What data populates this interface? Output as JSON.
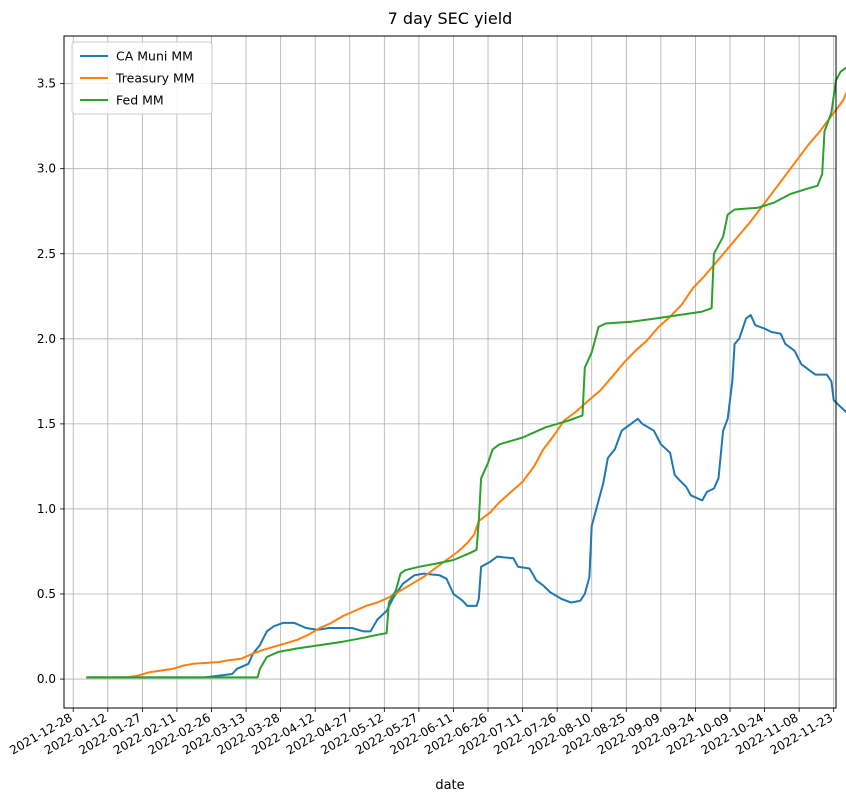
{
  "chart_data": {
    "type": "line",
    "title": "7 day SEC yield",
    "xlabel": "date",
    "ylabel": "",
    "grid": true,
    "legend_position": "top-left",
    "x_ticks": [
      "2021-12-28",
      "2022-01-12",
      "2022-01-27",
      "2022-02-11",
      "2022-02-26",
      "2022-03-13",
      "2022-03-28",
      "2022-04-12",
      "2022-04-27",
      "2022-05-12",
      "2022-05-27",
      "2022-06-11",
      "2022-06-26",
      "2022-07-11",
      "2022-07-26",
      "2022-08-10",
      "2022-08-25",
      "2022-09-09",
      "2022-09-24",
      "2022-10-09",
      "2022-10-24",
      "2022-11-08",
      "2022-11-23"
    ],
    "y_ticks": [
      0.0,
      0.5,
      1.0,
      1.5,
      2.0,
      2.5,
      3.0,
      3.5
    ],
    "y_tick_labels": [
      "0.0",
      "0.5",
      "1.0",
      "1.5",
      "2.0",
      "2.5",
      "3.0",
      "3.5"
    ],
    "xlim": [
      "2021-12-24",
      "2022-11-24"
    ],
    "ylim": [
      -0.17,
      3.78
    ],
    "series": [
      {
        "name": "CA Muni MM",
        "color": "#1f77b4",
        "points": [
          [
            "2022-01-03",
            0.01
          ],
          [
            "2022-02-23",
            0.01
          ],
          [
            "2022-03-01",
            0.02
          ],
          [
            "2022-03-07",
            0.03
          ],
          [
            "2022-03-09",
            0.06
          ],
          [
            "2022-03-14",
            0.09
          ],
          [
            "2022-03-16",
            0.15
          ],
          [
            "2022-03-19",
            0.2
          ],
          [
            "2022-03-22",
            0.28
          ],
          [
            "2022-03-25",
            0.31
          ],
          [
            "2022-03-29",
            0.33
          ],
          [
            "2022-04-03",
            0.33
          ],
          [
            "2022-04-08",
            0.3
          ],
          [
            "2022-04-13",
            0.29
          ],
          [
            "2022-04-18",
            0.3
          ],
          [
            "2022-04-28",
            0.3
          ],
          [
            "2022-05-03",
            0.28
          ],
          [
            "2022-05-06",
            0.28
          ],
          [
            "2022-05-09",
            0.35
          ],
          [
            "2022-05-13",
            0.4
          ],
          [
            "2022-05-16",
            0.48
          ],
          [
            "2022-05-20",
            0.56
          ],
          [
            "2022-05-25",
            0.61
          ],
          [
            "2022-05-29",
            0.62
          ],
          [
            "2022-06-05",
            0.61
          ],
          [
            "2022-06-08",
            0.59
          ],
          [
            "2022-06-11",
            0.5
          ],
          [
            "2022-06-15",
            0.46
          ],
          [
            "2022-06-17",
            0.43
          ],
          [
            "2022-06-21",
            0.43
          ],
          [
            "2022-06-22",
            0.47
          ],
          [
            "2022-06-23",
            0.66
          ],
          [
            "2022-06-27",
            0.69
          ],
          [
            "2022-06-30",
            0.72
          ],
          [
            "2022-07-07",
            0.71
          ],
          [
            "2022-07-09",
            0.66
          ],
          [
            "2022-07-14",
            0.65
          ],
          [
            "2022-07-17",
            0.58
          ],
          [
            "2022-07-20",
            0.55
          ],
          [
            "2022-07-23",
            0.51
          ],
          [
            "2022-07-28",
            0.47
          ],
          [
            "2022-08-01",
            0.45
          ],
          [
            "2022-08-05",
            0.46
          ],
          [
            "2022-08-07",
            0.5
          ],
          [
            "2022-08-09",
            0.6
          ],
          [
            "2022-08-10",
            0.9
          ],
          [
            "2022-08-12",
            1.0
          ],
          [
            "2022-08-15",
            1.15
          ],
          [
            "2022-08-17",
            1.3
          ],
          [
            "2022-08-20",
            1.35
          ],
          [
            "2022-08-23",
            1.46
          ],
          [
            "2022-08-27",
            1.5
          ],
          [
            "2022-08-30",
            1.53
          ],
          [
            "2022-09-01",
            1.5
          ],
          [
            "2022-09-06",
            1.46
          ],
          [
            "2022-09-09",
            1.38
          ],
          [
            "2022-09-13",
            1.33
          ],
          [
            "2022-09-15",
            1.2
          ],
          [
            "2022-09-17",
            1.17
          ],
          [
            "2022-09-20",
            1.13
          ],
          [
            "2022-09-22",
            1.08
          ],
          [
            "2022-09-27",
            1.05
          ],
          [
            "2022-09-29",
            1.1
          ],
          [
            "2022-10-02",
            1.12
          ],
          [
            "2022-10-04",
            1.18
          ],
          [
            "2022-10-06",
            1.46
          ],
          [
            "2022-10-08",
            1.53
          ],
          [
            "2022-10-10",
            1.75
          ],
          [
            "2022-10-11",
            1.97
          ],
          [
            "2022-10-13",
            2.0
          ],
          [
            "2022-10-16",
            2.12
          ],
          [
            "2022-10-18",
            2.14
          ],
          [
            "2022-10-20",
            2.08
          ],
          [
            "2022-10-24",
            2.06
          ],
          [
            "2022-10-27",
            2.04
          ],
          [
            "2022-10-31",
            2.03
          ],
          [
            "2022-11-02",
            1.97
          ],
          [
            "2022-11-06",
            1.93
          ],
          [
            "2022-11-09",
            1.85
          ],
          [
            "2022-11-12",
            1.82
          ],
          [
            "2022-11-15",
            1.79
          ],
          [
            "2022-11-20",
            1.79
          ],
          [
            "2022-11-22",
            1.75
          ],
          [
            "2022-11-23",
            1.64
          ],
          [
            "2022-11-26",
            1.6
          ],
          [
            "2022-11-30",
            1.55
          ]
        ]
      },
      {
        "name": "Treasury MM",
        "color": "#ff7f0e",
        "points": [
          [
            "2022-01-03",
            0.01
          ],
          [
            "2022-01-20",
            0.01
          ],
          [
            "2022-01-25",
            0.02
          ],
          [
            "2022-01-30",
            0.04
          ],
          [
            "2022-02-04",
            0.05
          ],
          [
            "2022-02-09",
            0.06
          ],
          [
            "2022-02-14",
            0.08
          ],
          [
            "2022-02-18",
            0.09
          ],
          [
            "2022-03-01",
            0.1
          ],
          [
            "2022-03-05",
            0.11
          ],
          [
            "2022-03-11",
            0.12
          ],
          [
            "2022-03-16",
            0.15
          ],
          [
            "2022-03-20",
            0.17
          ],
          [
            "2022-03-25",
            0.19
          ],
          [
            "2022-03-30",
            0.21
          ],
          [
            "2022-04-04",
            0.23
          ],
          [
            "2022-04-09",
            0.26
          ],
          [
            "2022-04-14",
            0.3
          ],
          [
            "2022-04-19",
            0.33
          ],
          [
            "2022-04-24",
            0.37
          ],
          [
            "2022-04-29",
            0.4
          ],
          [
            "2022-05-04",
            0.43
          ],
          [
            "2022-05-09",
            0.45
          ],
          [
            "2022-05-14",
            0.48
          ],
          [
            "2022-05-19",
            0.52
          ],
          [
            "2022-05-24",
            0.56
          ],
          [
            "2022-05-29",
            0.6
          ],
          [
            "2022-06-03",
            0.65
          ],
          [
            "2022-06-08",
            0.7
          ],
          [
            "2022-06-13",
            0.75
          ],
          [
            "2022-06-17",
            0.8
          ],
          [
            "2022-06-20",
            0.85
          ],
          [
            "2022-06-22",
            0.93
          ],
          [
            "2022-06-27",
            0.98
          ],
          [
            "2022-07-01",
            1.04
          ],
          [
            "2022-07-06",
            1.1
          ],
          [
            "2022-07-11",
            1.16
          ],
          [
            "2022-07-16",
            1.25
          ],
          [
            "2022-07-20",
            1.35
          ],
          [
            "2022-07-25",
            1.44
          ],
          [
            "2022-07-29",
            1.52
          ],
          [
            "2022-08-03",
            1.57
          ],
          [
            "2022-08-08",
            1.63
          ],
          [
            "2022-08-14",
            1.7
          ],
          [
            "2022-08-19",
            1.78
          ],
          [
            "2022-08-24",
            1.86
          ],
          [
            "2022-08-29",
            1.93
          ],
          [
            "2022-09-03",
            1.99
          ],
          [
            "2022-09-08",
            2.07
          ],
          [
            "2022-09-13",
            2.13
          ],
          [
            "2022-09-18",
            2.2
          ],
          [
            "2022-09-23",
            2.3
          ],
          [
            "2022-09-28",
            2.37
          ],
          [
            "2022-10-03",
            2.45
          ],
          [
            "2022-10-08",
            2.53
          ],
          [
            "2022-10-13",
            2.61
          ],
          [
            "2022-10-18",
            2.69
          ],
          [
            "2022-10-23",
            2.78
          ],
          [
            "2022-10-28",
            2.87
          ],
          [
            "2022-11-02",
            2.96
          ],
          [
            "2022-11-07",
            3.05
          ],
          [
            "2022-11-12",
            3.14
          ],
          [
            "2022-11-17",
            3.22
          ],
          [
            "2022-11-22",
            3.31
          ],
          [
            "2022-11-27",
            3.4
          ],
          [
            "2022-11-30",
            3.49
          ]
        ]
      },
      {
        "name": "Fed MM",
        "color": "#2ca02c",
        "points": [
          [
            "2022-01-03",
            0.01
          ],
          [
            "2022-03-18",
            0.01
          ],
          [
            "2022-03-19",
            0.06
          ],
          [
            "2022-03-22",
            0.13
          ],
          [
            "2022-03-27",
            0.16
          ],
          [
            "2022-04-04",
            0.18
          ],
          [
            "2022-04-14",
            0.2
          ],
          [
            "2022-04-24",
            0.22
          ],
          [
            "2022-05-02",
            0.24
          ],
          [
            "2022-05-09",
            0.26
          ],
          [
            "2022-05-13",
            0.27
          ],
          [
            "2022-05-14",
            0.45
          ],
          [
            "2022-05-17",
            0.52
          ],
          [
            "2022-05-19",
            0.62
          ],
          [
            "2022-05-21",
            0.64
          ],
          [
            "2022-05-27",
            0.66
          ],
          [
            "2022-06-04",
            0.68
          ],
          [
            "2022-06-11",
            0.7
          ],
          [
            "2022-06-18",
            0.74
          ],
          [
            "2022-06-21",
            0.76
          ],
          [
            "2022-06-22",
            0.93
          ],
          [
            "2022-06-23",
            1.18
          ],
          [
            "2022-06-26",
            1.27
          ],
          [
            "2022-06-28",
            1.35
          ],
          [
            "2022-07-01",
            1.38
          ],
          [
            "2022-07-06",
            1.4
          ],
          [
            "2022-07-11",
            1.42
          ],
          [
            "2022-07-16",
            1.45
          ],
          [
            "2022-07-21",
            1.48
          ],
          [
            "2022-07-26",
            1.5
          ],
          [
            "2022-07-31",
            1.52
          ],
          [
            "2022-08-06",
            1.55
          ],
          [
            "2022-08-07",
            1.83
          ],
          [
            "2022-08-10",
            1.92
          ],
          [
            "2022-08-13",
            2.07
          ],
          [
            "2022-08-16",
            2.09
          ],
          [
            "2022-08-27",
            2.1
          ],
          [
            "2022-09-07",
            2.12
          ],
          [
            "2022-09-17",
            2.14
          ],
          [
            "2022-09-27",
            2.16
          ],
          [
            "2022-10-01",
            2.18
          ],
          [
            "2022-10-02",
            2.5
          ],
          [
            "2022-10-06",
            2.6
          ],
          [
            "2022-10-08",
            2.73
          ],
          [
            "2022-10-11",
            2.76
          ],
          [
            "2022-10-21",
            2.77
          ],
          [
            "2022-10-28",
            2.8
          ],
          [
            "2022-11-04",
            2.85
          ],
          [
            "2022-11-11",
            2.88
          ],
          [
            "2022-11-16",
            2.9
          ],
          [
            "2022-11-18",
            2.97
          ],
          [
            "2022-11-19",
            3.22
          ],
          [
            "2022-11-22",
            3.33
          ],
          [
            "2022-11-24",
            3.52
          ],
          [
            "2022-11-26",
            3.57
          ],
          [
            "2022-11-30",
            3.61
          ]
        ]
      }
    ]
  }
}
